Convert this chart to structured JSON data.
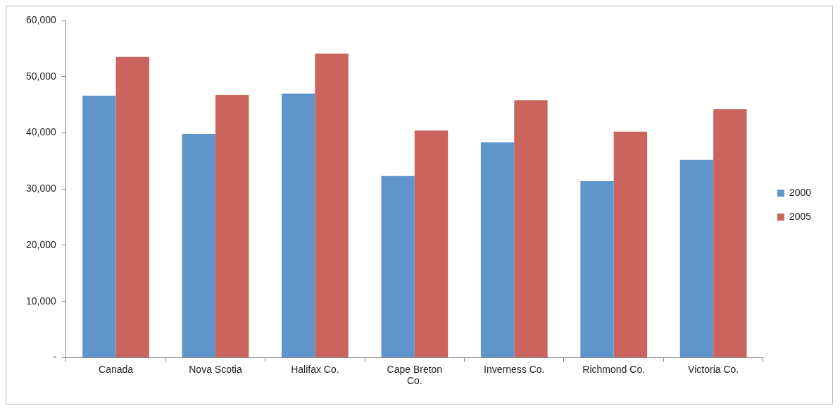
{
  "chart_data": {
    "type": "bar",
    "categories": [
      "Canada",
      "Nova Scotia",
      "Halifax Co.",
      "Cape Breton Co.",
      "Inverness Co.",
      "Richmond Co.",
      "Victoria Co."
    ],
    "series": [
      {
        "name": "2000",
        "color": "#5f95cb",
        "values": [
          46600,
          39800,
          47000,
          32300,
          38300,
          31400,
          35200
        ]
      },
      {
        "name": "2005",
        "color": "#cb645c",
        "values": [
          53500,
          46700,
          54100,
          40400,
          45800,
          40200,
          44200
        ]
      }
    ],
    "ylim": [
      0,
      60000
    ],
    "yticks": [
      {
        "value": 0,
        "label": "-"
      },
      {
        "value": 10000,
        "label": "10,000"
      },
      {
        "value": 20000,
        "label": "20,000"
      },
      {
        "value": 30000,
        "label": "30,000"
      },
      {
        "value": 40000,
        "label": "40,000"
      },
      {
        "value": 50000,
        "label": "50,000"
      },
      {
        "value": 60000,
        "label": "60,000"
      }
    ],
    "legend": "right",
    "grid": false
  }
}
